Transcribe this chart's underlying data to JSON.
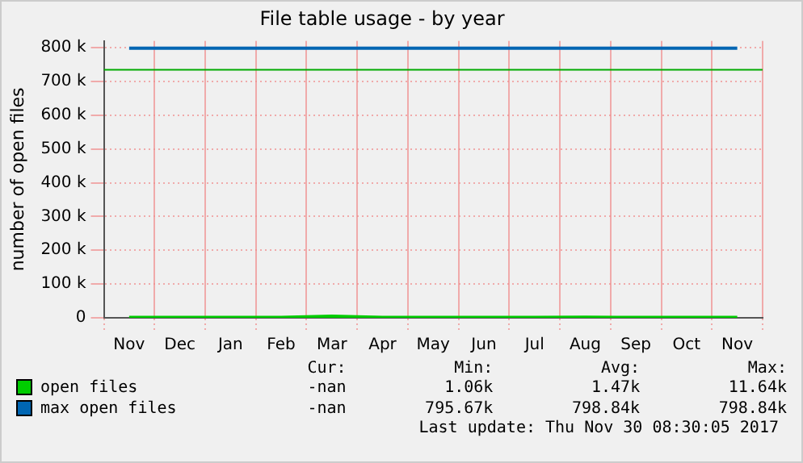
{
  "chart_data": {
    "type": "line",
    "title": "File table usage - by year",
    "ylabel": "number of open files",
    "categories": [
      "Nov",
      "Dec",
      "Jan",
      "Feb",
      "Mar",
      "Apr",
      "May",
      "Jun",
      "Jul",
      "Aug",
      "Sep",
      "Oct",
      "Nov"
    ],
    "series": [
      {
        "name": "open files",
        "color": "#00cc00",
        "values": [
          1000,
          1000,
          1000,
          1000,
          5000,
          1000,
          1000,
          1000,
          1000,
          2000,
          1000,
          1000,
          1000
        ]
      },
      {
        "name": "max open files",
        "color": "#0066b3",
        "values": [
          798840,
          798840,
          798840,
          798840,
          798840,
          798840,
          798840,
          798840,
          798840,
          798840,
          798840,
          798840,
          798840
        ]
      }
    ],
    "ylim": [
      0,
      820000
    ],
    "yticks": [
      0,
      {
        "value": 100000,
        "label": "100 k"
      },
      {
        "value": 200000,
        "label": "200 k"
      },
      {
        "value": 300000,
        "label": "300 k"
      },
      {
        "value": 400000,
        "label": "400 k"
      },
      {
        "value": 500000,
        "label": "500 k"
      },
      {
        "value": 600000,
        "label": "600 k"
      },
      {
        "value": 700000,
        "label": "700 k"
      },
      {
        "value": 800000,
        "label": "800 k"
      }
    ],
    "ref_lines": [
      {
        "axis": "y",
        "value": 735000,
        "color": "#00aa00"
      }
    ],
    "grid": true,
    "legend": "bottom",
    "marker": "none",
    "line_style": "solid",
    "annotations": [
      "Cur:",
      "Min:",
      "Avg:",
      "Max:",
      "-nan",
      "1.06k",
      "1.47k",
      "11.64k",
      "-nan",
      "795.67k",
      "798.84k",
      "798.84k",
      "Last update: Thu Nov 30 08:30:05 2017"
    ]
  }
}
